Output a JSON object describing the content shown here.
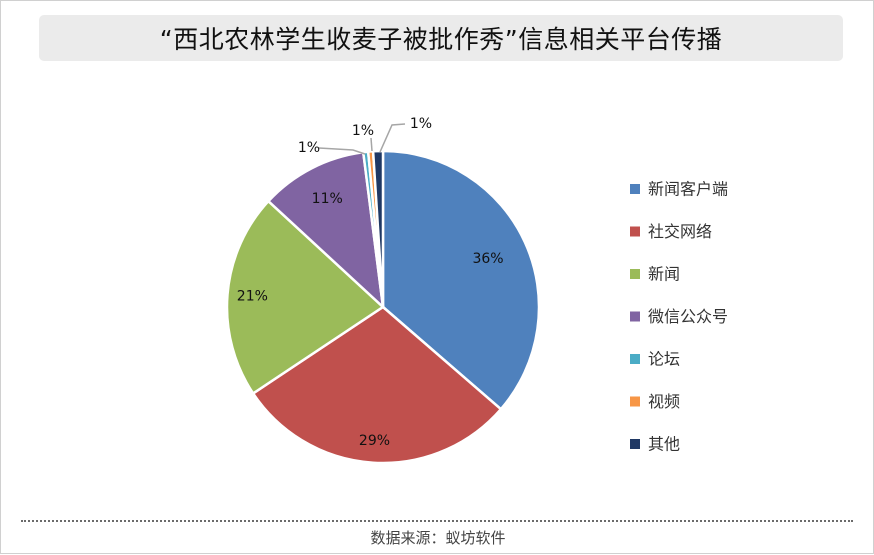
{
  "title": "“西北农林学生收麦子被批作秀”信息相关平台传播",
  "source": "数据来源：蚁坊软件",
  "chart_data": {
    "type": "pie",
    "title": "“西北农林学生收麦子被批作秀”信息相关平台传播",
    "series": [
      {
        "name": "新闻客户端",
        "value": 36,
        "label": "36%",
        "color": "#4f81bd"
      },
      {
        "name": "社交网络",
        "value": 29,
        "label": "29%",
        "color": "#c0504d"
      },
      {
        "name": "新闻",
        "value": 21,
        "label": "21%",
        "color": "#9bbb59"
      },
      {
        "name": "微信公众号",
        "value": 11,
        "label": "11%",
        "color": "#8064a2"
      },
      {
        "name": "论坛",
        "value": 0.5,
        "label": "1%",
        "color": "#4bacc6"
      },
      {
        "name": "视频",
        "value": 0.5,
        "label": "1%",
        "color": "#f79646"
      },
      {
        "name": "其他",
        "value": 1,
        "label": "1%",
        "color": "#1f3864"
      }
    ],
    "legend_position": "right"
  }
}
